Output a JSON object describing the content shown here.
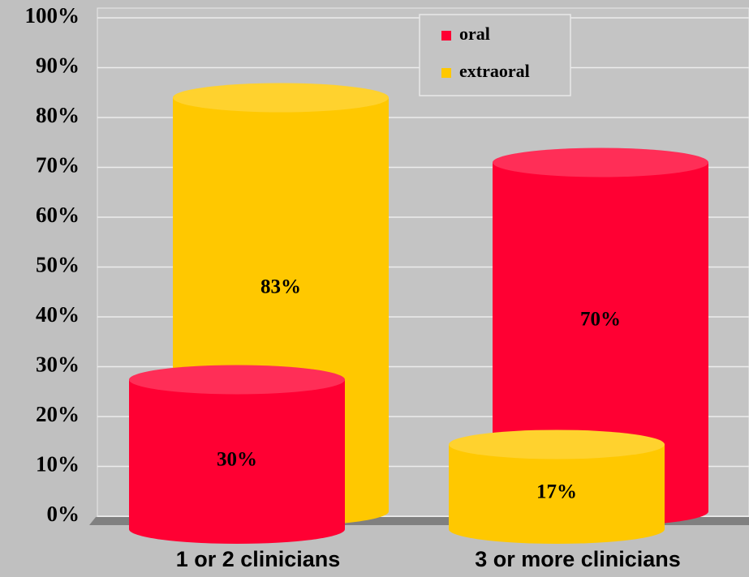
{
  "chart_data": {
    "type": "bar",
    "categories": [
      "1 or 2 clinicians",
      "3 or more clinicians"
    ],
    "series": [
      {
        "name": "oral",
        "color": "#ff0033",
        "values": [
          30,
          70
        ],
        "value_labels": [
          "30%",
          "70%"
        ]
      },
      {
        "name": "extraoral",
        "color": "#ffc800",
        "values": [
          83,
          17
        ],
        "value_labels": [
          "83%",
          "17%"
        ]
      }
    ],
    "ylim": [
      0,
      100
    ],
    "yticks": [
      {
        "value": 0,
        "label": "0%"
      },
      {
        "value": 10,
        "label": "10%"
      },
      {
        "value": 20,
        "label": "20%"
      },
      {
        "value": 30,
        "label": "30%"
      },
      {
        "value": 40,
        "label": "40%"
      },
      {
        "value": 50,
        "label": "50%"
      },
      {
        "value": 60,
        "label": "60%"
      },
      {
        "value": 70,
        "label": "70%"
      },
      {
        "value": 80,
        "label": "80%"
      },
      {
        "value": 90,
        "label": "90%"
      },
      {
        "value": 100,
        "label": "100%"
      }
    ],
    "grid": true,
    "legend": "top"
  }
}
